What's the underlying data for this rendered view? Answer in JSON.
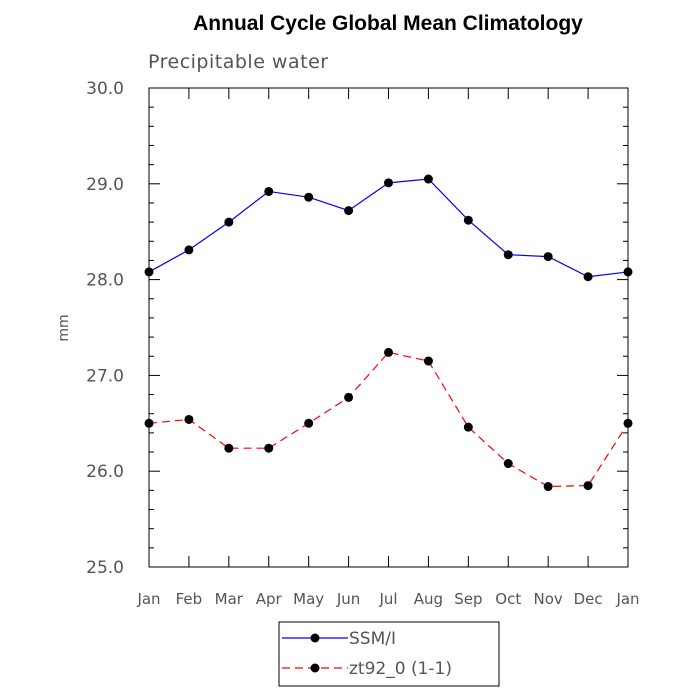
{
  "chart_data": {
    "type": "line",
    "title": "Annual Cycle Global Mean Climatology",
    "subtitle": "Precipitable water",
    "xlabel": "",
    "ylabel": "mm",
    "categories": [
      "Jan",
      "Feb",
      "Mar",
      "Apr",
      "May",
      "Jun",
      "Jul",
      "Aug",
      "Sep",
      "Oct",
      "Nov",
      "Dec",
      "Jan"
    ],
    "ylim": [
      25.0,
      30.0
    ],
    "yticks": [
      "25.0",
      "26.0",
      "27.0",
      "28.0",
      "29.0",
      "30.0"
    ],
    "series": [
      {
        "name": "SSM/I",
        "color": "#0000ff",
        "dash": "solid",
        "marker": "circle",
        "values": [
          28.08,
          28.31,
          28.6,
          28.92,
          28.86,
          28.72,
          29.01,
          29.05,
          28.62,
          28.26,
          28.24,
          28.03,
          28.08
        ]
      },
      {
        "name": "zt92_0 (1-1)",
        "color": "#ff0000",
        "dash": "dashed",
        "marker": "circle",
        "values": [
          26.5,
          26.54,
          26.24,
          26.24,
          26.5,
          26.77,
          27.24,
          27.15,
          26.46,
          26.08,
          25.84,
          25.85,
          26.5
        ]
      }
    ],
    "legend_position": "bottom-center"
  }
}
